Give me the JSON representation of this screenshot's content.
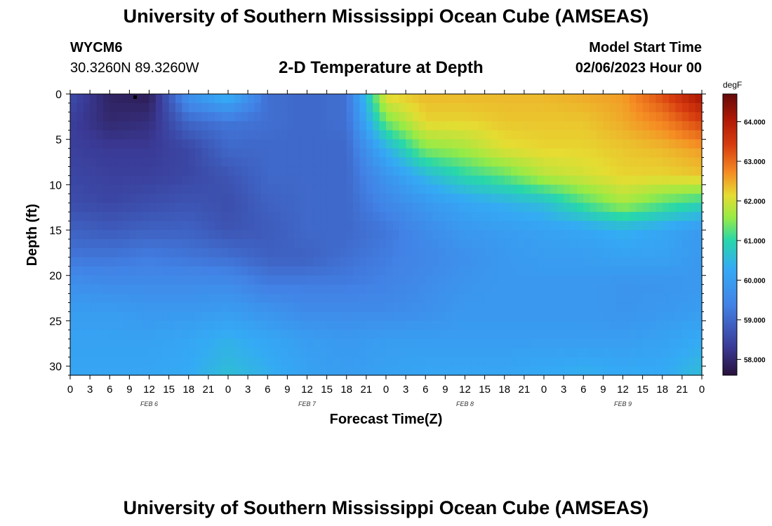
{
  "header": {
    "title": "University of Southern Mississippi Ocean Cube (AMSEAS)",
    "station_id": "WYCM6",
    "station_location": "30.3260N  89.3260W",
    "plot_title": "2-D Temperature at Depth",
    "model_start_label": "Model Start Time",
    "model_start_value": "02/06/2023 Hour 00"
  },
  "footer": {
    "title": "University of Southern Mississippi Ocean Cube (AMSEAS)"
  },
  "chart_data": {
    "type": "heatmap",
    "title": "2-D Temperature at Depth",
    "xlabel": "Forecast Time(Z)",
    "ylabel": "Depth (ft)",
    "x_tick_labels": [
      "0",
      "3",
      "6",
      "9",
      "12",
      "15",
      "18",
      "21",
      "0",
      "3",
      "6",
      "9",
      "12",
      "15",
      "18",
      "21",
      "0",
      "3",
      "6",
      "9",
      "12",
      "15",
      "18",
      "21",
      "0",
      "3",
      "6",
      "9",
      "12",
      "15",
      "18",
      "21",
      "0"
    ],
    "date_labels": [
      {
        "label": "FEB 6",
        "hour": 12
      },
      {
        "label": "FEB 7",
        "hour": 36
      },
      {
        "label": "FEB 8",
        "hour": 60
      },
      {
        "label": "FEB 9",
        "hour": 84
      }
    ],
    "xlim_hours": [
      0,
      96
    ],
    "ylim_ft": [
      0,
      31
    ],
    "y_ticks": [
      0,
      5,
      10,
      15,
      20,
      25,
      30
    ],
    "colorbar": {
      "unit": "degF",
      "range": [
        57.6,
        64.7
      ],
      "ticks": [
        58.0,
        59.0,
        60.0,
        61.0,
        62.0,
        63.0,
        64.0
      ],
      "tick_labels": [
        "58.000",
        "59.000",
        "60.000",
        "61.000",
        "62.000",
        "63.000",
        "64.000"
      ]
    },
    "grid": {
      "time_hours": [
        0,
        6,
        12,
        18,
        24,
        30,
        36,
        42,
        48,
        54,
        60,
        66,
        72,
        78,
        84,
        90,
        96
      ],
      "depth_ft": [
        0,
        3,
        6,
        9,
        12,
        15,
        18,
        21,
        24,
        27,
        31
      ],
      "temperature_degF": [
        [
          58.6,
          57.9,
          57.8,
          59.8,
          60.5,
          59.1,
          59.0,
          59.1,
          62.2,
          62.4,
          62.4,
          62.4,
          62.4,
          62.5,
          62.6,
          63.3,
          64.2
        ],
        [
          58.4,
          58.0,
          58.1,
          59.0,
          59.2,
          59.1,
          59.0,
          59.1,
          61.4,
          62.2,
          62.2,
          62.3,
          62.3,
          62.3,
          62.5,
          62.8,
          63.4
        ],
        [
          58.4,
          58.3,
          58.3,
          58.5,
          59.0,
          59.0,
          59.0,
          59.0,
          60.4,
          61.5,
          61.7,
          62.1,
          62.2,
          62.2,
          62.3,
          62.4,
          62.6
        ],
        [
          58.5,
          58.4,
          58.4,
          58.5,
          58.7,
          59.0,
          59.0,
          59.0,
          59.8,
          60.5,
          61.0,
          61.3,
          61.8,
          62.0,
          62.2,
          62.2,
          62.3
        ],
        [
          58.6,
          58.5,
          58.6,
          58.7,
          58.6,
          58.9,
          59.0,
          59.0,
          59.5,
          59.9,
          60.2,
          60.4,
          60.6,
          61.2,
          61.7,
          61.3,
          61.0
        ],
        [
          58.9,
          58.8,
          58.9,
          58.9,
          58.7,
          58.8,
          59.0,
          59.0,
          59.2,
          59.6,
          59.9,
          60.0,
          60.1,
          60.2,
          60.4,
          60.2,
          59.9
        ],
        [
          59.2,
          59.2,
          59.3,
          59.2,
          59.1,
          58.9,
          58.9,
          59.1,
          59.3,
          59.5,
          59.7,
          59.9,
          60.0,
          60.0,
          60.1,
          60.1,
          59.9
        ],
        [
          59.7,
          59.6,
          59.6,
          59.6,
          59.6,
          59.3,
          59.3,
          59.3,
          59.4,
          59.6,
          59.8,
          59.9,
          59.9,
          59.9,
          59.8,
          59.8,
          59.9
        ],
        [
          60.0,
          60.0,
          59.9,
          59.9,
          60.0,
          59.8,
          59.6,
          59.6,
          59.6,
          59.7,
          59.9,
          59.9,
          59.9,
          59.9,
          59.8,
          59.9,
          60.0
        ],
        [
          60.1,
          60.1,
          60.1,
          60.2,
          60.4,
          60.2,
          60.0,
          59.9,
          60.0,
          60.0,
          60.0,
          60.0,
          60.0,
          60.0,
          60.0,
          60.1,
          60.3
        ],
        [
          60.2,
          60.2,
          60.2,
          60.3,
          60.6,
          60.4,
          60.1,
          60.0,
          60.1,
          60.2,
          60.2,
          60.2,
          60.3,
          60.4,
          60.3,
          60.3,
          60.6
        ]
      ]
    }
  }
}
